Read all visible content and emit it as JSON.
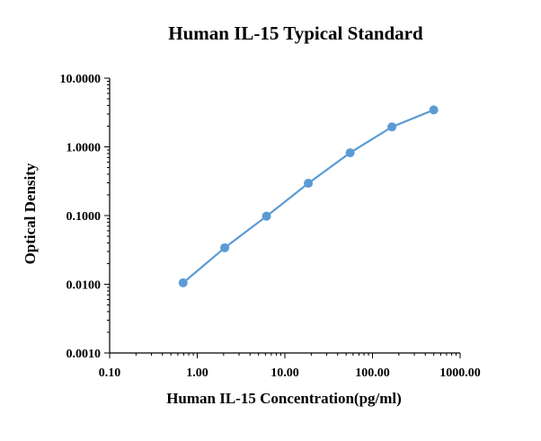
{
  "chart_data": {
    "type": "scatter",
    "title": "Human IL-15 Typical Standard",
    "xlabel": "Human IL-15 Concentration(pg/ml)",
    "ylabel": "Optical Density",
    "x_scale": "log",
    "y_scale": "log",
    "xlim": [
      0.1,
      1000
    ],
    "ylim": [
      0.001,
      10
    ],
    "x_ticks": [
      0.1,
      1,
      10,
      100,
      1000
    ],
    "x_tick_labels": [
      "0.10",
      "1.00",
      "10.00",
      "100.00",
      "1000.00"
    ],
    "y_ticks": [
      0.001,
      0.01,
      0.1,
      1,
      10
    ],
    "y_tick_labels": [
      "0.0010",
      "0.0100",
      "0.1000",
      "1.0000",
      "10.0000"
    ],
    "grid": false,
    "legend": "none",
    "series": [
      {
        "color": "#5B9BD5",
        "x": [
          0.69,
          2.06,
          6.17,
          18.5,
          55.6,
          166.7,
          500
        ],
        "y": [
          0.0105,
          0.034,
          0.098,
          0.295,
          0.82,
          1.95,
          3.45
        ]
      }
    ]
  }
}
